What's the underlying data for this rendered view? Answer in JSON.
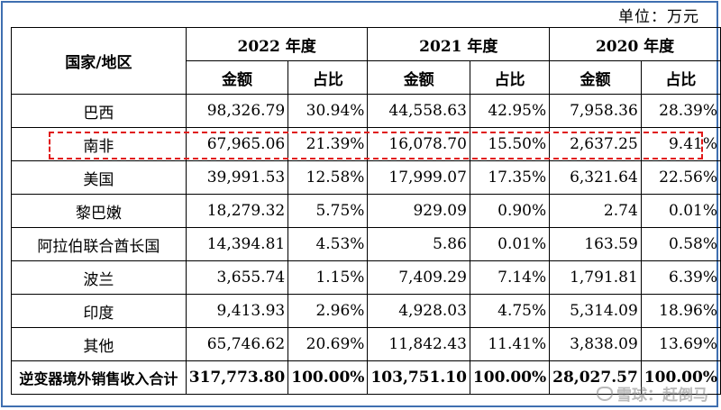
{
  "unit_label": "单位：万元",
  "headers": {
    "region": "国家/地区",
    "years": [
      "2022 年度",
      "2021 年度",
      "2020 年度"
    ],
    "amount": "金额",
    "ratio": "占比"
  },
  "rows": [
    {
      "name": "巴西",
      "v": [
        "98,326.79",
        "30.94%",
        "44,558.63",
        "42.95%",
        "7,958.36",
        "28.39%"
      ]
    },
    {
      "name": "南非",
      "v": [
        "67,965.06",
        "21.39%",
        "16,078.70",
        "15.50%",
        "2,637.25",
        "9.41%"
      ]
    },
    {
      "name": "美国",
      "v": [
        "39,991.53",
        "12.58%",
        "17,999.07",
        "17.35%",
        "6,321.64",
        "22.56%"
      ]
    },
    {
      "name": "黎巴嫩",
      "v": [
        "18,279.32",
        "5.75%",
        "929.09",
        "0.90%",
        "2.74",
        "0.01%"
      ]
    },
    {
      "name": "阿拉伯联合酋长国",
      "v": [
        "14,394.81",
        "4.53%",
        "5.86",
        "0.01%",
        "163.59",
        "0.58%"
      ]
    },
    {
      "name": "波兰",
      "v": [
        "3,655.74",
        "1.15%",
        "7,409.29",
        "7.14%",
        "1,791.81",
        "6.39%"
      ]
    },
    {
      "name": "印度",
      "v": [
        "9,413.93",
        "2.96%",
        "4,928.03",
        "4.75%",
        "5,314.09",
        "18.96%"
      ]
    },
    {
      "name": "其他",
      "v": [
        "65,746.62",
        "20.69%",
        "11,842.43",
        "11.41%",
        "3,838.09",
        "13.69%"
      ]
    }
  ],
  "total": {
    "name": "逆变器境外销售收入合计",
    "v": [
      "317,773.80",
      "100.00%",
      "103,751.10",
      "100.00%",
      "28,027.57",
      "100.00%"
    ]
  },
  "highlight_color": "#e01818",
  "frame_color": "#3f6fb0",
  "watermark": "雪球：赶倒马"
}
